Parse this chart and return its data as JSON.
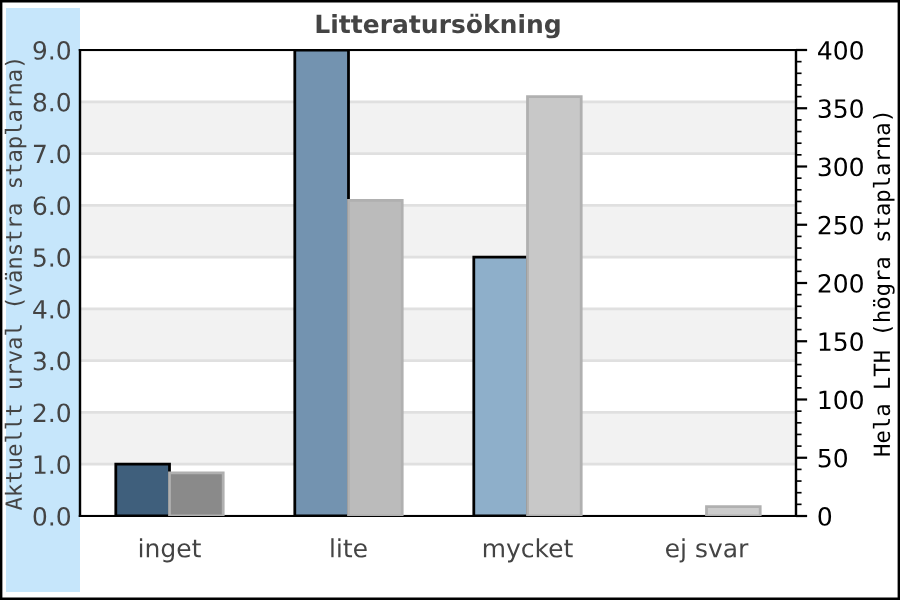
{
  "chart_data": {
    "type": "bar",
    "title": "Litteratursökning",
    "ylabel": "Aktuellt urval (vänstra staplarna)",
    "y2label": "Hela LTH (högra staplarna)",
    "categories": [
      "inget",
      "lite",
      "mycket",
      "ej svar"
    ],
    "series": [
      {
        "colors": [
          "#3f5f7c",
          "#7393b0",
          "#8eafca",
          "#8eafca"
        ],
        "values": [
          1.0,
          9.0,
          5.0,
          null
        ]
      },
      {
        "axis": "y2",
        "colors": [
          "#8a8a8a",
          "#bbbbbb",
          "#c8c8c8",
          "#cccccc"
        ],
        "values": [
          37,
          271,
          360,
          8
        ]
      }
    ],
    "ylim": [
      0,
      9
    ],
    "yticks": [
      {
        "value": 0,
        "label": "0.0"
      },
      {
        "value": 1,
        "label": "1.0"
      },
      {
        "value": 2,
        "label": "2.0"
      },
      {
        "value": 3,
        "label": "3.0"
      },
      {
        "value": 4,
        "label": "4.0"
      },
      {
        "value": 5,
        "label": "5.0"
      },
      {
        "value": 6,
        "label": "6.0"
      },
      {
        "value": 7,
        "label": "7.0"
      },
      {
        "value": 8,
        "label": "8.0"
      },
      {
        "value": 9,
        "label": "9.0"
      }
    ],
    "y2lim": [
      0,
      400
    ],
    "y2ticks": [
      0,
      50,
      100,
      150,
      200,
      250,
      300,
      350,
      400
    ],
    "grid": "y",
    "legend": false
  }
}
